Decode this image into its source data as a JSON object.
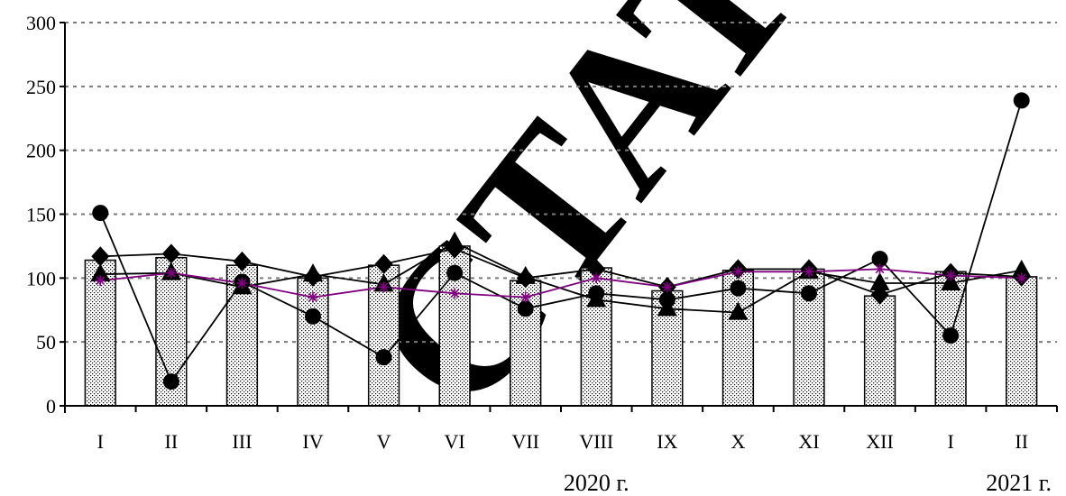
{
  "chart_data": {
    "type": "bar",
    "title": "",
    "xlabel": "",
    "ylabel": "",
    "ylim": [
      0,
      300
    ],
    "yticks": [
      0,
      50,
      100,
      150,
      200,
      250,
      300
    ],
    "grid": true,
    "legend": "none",
    "categories": [
      "I",
      "II",
      "III",
      "IV",
      "V",
      "VI",
      "VII",
      "VIII",
      "IX",
      "X",
      "XI",
      "XII",
      "I",
      "II"
    ],
    "year_labels": [
      {
        "text": "2020 г.",
        "category_index": 7
      },
      {
        "text": "2021 г.",
        "category_index": 13
      }
    ],
    "bars": {
      "values": [
        114,
        116,
        110,
        100,
        110,
        125,
        98,
        108,
        90,
        106,
        107,
        86,
        105,
        101
      ],
      "fill": "dotted"
    },
    "series": [
      {
        "marker": "diamond",
        "color": "#000000",
        "values": [
          117,
          119,
          113,
          101,
          111,
          123,
          100,
          107,
          93,
          107,
          107,
          87,
          104,
          101
        ]
      },
      {
        "marker": "triangle",
        "color": "#000000",
        "values": [
          103,
          104,
          93,
          103,
          95,
          128,
          101,
          83,
          76,
          73,
          105,
          96,
          96,
          106
        ]
      },
      {
        "marker": "circle",
        "color": "#000000",
        "values": [
          151,
          19,
          97,
          70,
          38,
          104,
          76,
          88,
          83,
          92,
          88,
          115,
          55,
          239
        ]
      },
      {
        "marker": "asterisk",
        "color": "#800080",
        "values": [
          98,
          104,
          96,
          85,
          93,
          88,
          85,
          100,
          93,
          105,
          105,
          107,
          102,
          100
        ]
      }
    ]
  },
  "watermark": {
    "text": "СТАТ",
    "color": "#d9d9d9"
  }
}
